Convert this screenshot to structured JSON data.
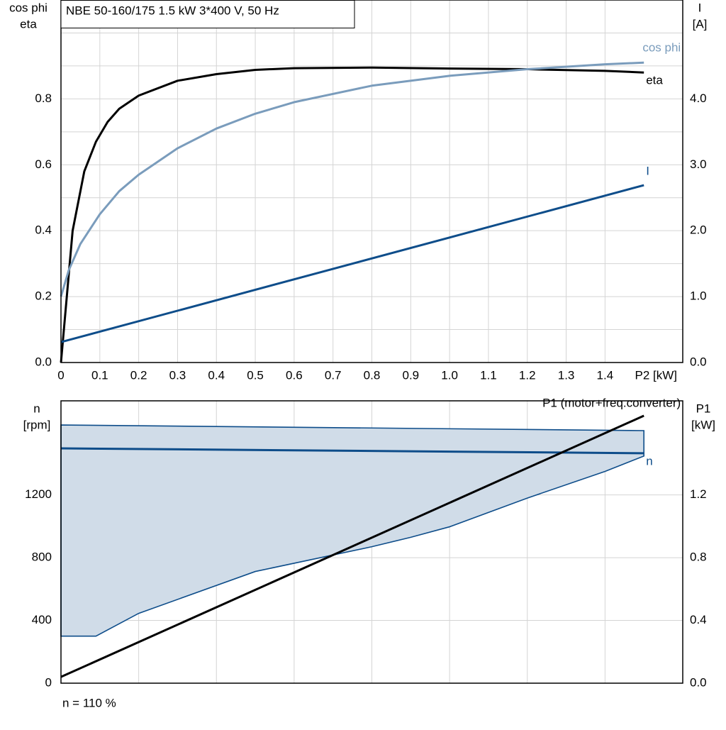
{
  "chart_data": [
    {
      "type": "line",
      "title": "NBE 50-160/175   1.5 kW   3*400 V, 50 Hz",
      "y_label_lines": [
        "cos phi",
        "eta"
      ],
      "y2_label_lines": [
        "I",
        "[A]"
      ],
      "xlabel": "P2 [kW]",
      "xlim": [
        0,
        1.6
      ],
      "xticks": [
        0,
        0.1,
        0.2,
        0.3,
        0.4,
        0.5,
        0.6,
        0.7,
        0.8,
        0.9,
        {
          "value": 1,
          "label": "1.0"
        },
        1.1,
        1.2,
        1.3,
        1.4
      ],
      "ylim": [
        0,
        1.1
      ],
      "yticks": [
        {
          "value": 0,
          "label": "0.0"
        },
        0.2,
        0.4,
        0.6,
        0.8
      ],
      "y_minor_ticks": [
        0.1,
        0.3,
        0.5,
        0.7,
        0.9,
        1.0
      ],
      "y2lim": [
        0,
        5.5
      ],
      "y2ticks": [
        {
          "value": 0,
          "label": "0.0"
        },
        {
          "value": 1,
          "label": "1.0"
        },
        {
          "value": 2,
          "label": "2.0"
        },
        {
          "value": 3,
          "label": "3.0"
        },
        {
          "value": 4,
          "label": "4.0"
        }
      ],
      "grid": true,
      "series": [
        {
          "name": "eta",
          "color": "#000000",
          "x": [
            0,
            0.03,
            0.06,
            0.09,
            0.12,
            0.15,
            0.2,
            0.3,
            0.4,
            0.5,
            0.6,
            0.8,
            1.0,
            1.2,
            1.4,
            1.5
          ],
          "values": [
            0,
            0.4,
            0.58,
            0.67,
            0.73,
            0.77,
            0.81,
            0.855,
            0.875,
            0.888,
            0.893,
            0.895,
            0.892,
            0.89,
            0.885,
            0.88
          ]
        },
        {
          "name": "cos phi",
          "color": "#7a9cbc",
          "x": [
            0,
            0.02,
            0.05,
            0.1,
            0.15,
            0.2,
            0.3,
            0.4,
            0.5,
            0.6,
            0.8,
            1.0,
            1.2,
            1.4,
            1.5
          ],
          "values": [
            0.2,
            0.28,
            0.36,
            0.45,
            0.52,
            0.57,
            0.65,
            0.71,
            0.755,
            0.79,
            0.84,
            0.87,
            0.89,
            0.905,
            0.91
          ]
        },
        {
          "name": "I",
          "color": "#0e4d8a",
          "axis": "y2",
          "x": [
            0,
            1.5
          ],
          "values": [
            0.31,
            2.69
          ]
        }
      ]
    },
    {
      "type": "line",
      "y_label_lines": [
        "n",
        "[rpm]"
      ],
      "y2_label_lines": [
        "P1",
        "[kW]"
      ],
      "xlim": [
        0,
        1.6
      ],
      "x_grid": [
        0.2,
        0.4,
        0.6,
        0.8,
        1.0,
        1.2,
        1.4
      ],
      "ylim": [
        0,
        1800
      ],
      "yticks": [
        0,
        400,
        800,
        1200
      ],
      "y2lim": [
        0,
        1.8
      ],
      "y2ticks": [
        {
          "value": 0,
          "label": "0.0"
        },
        0.4,
        0.8,
        1.2
      ],
      "grid": true,
      "band": {
        "color": "#d0dce8",
        "edge_color": "#0e4d8a",
        "x_upper": [
          0,
          1.5
        ],
        "upper": [
          1646,
          1610
        ],
        "x_lower": [
          0,
          0.09,
          0.2,
          0.5,
          0.8,
          0.9,
          1.0,
          1.2,
          1.4,
          1.5
        ],
        "lower": [
          300,
          300,
          445,
          712,
          870,
          930,
          997,
          1180,
          1350,
          1448
        ]
      },
      "series": [
        {
          "name": "n",
          "color": "#0e4d8a",
          "x": [
            0,
            1.5
          ],
          "values": [
            1497,
            1466
          ]
        },
        {
          "name": "P1 (motor+freq.converter)",
          "color": "#000000",
          "axis": "y2",
          "x": [
            0,
            1.5
          ],
          "values": [
            0.04,
            1.705
          ]
        }
      ],
      "footnote": "n = 110 %"
    }
  ]
}
